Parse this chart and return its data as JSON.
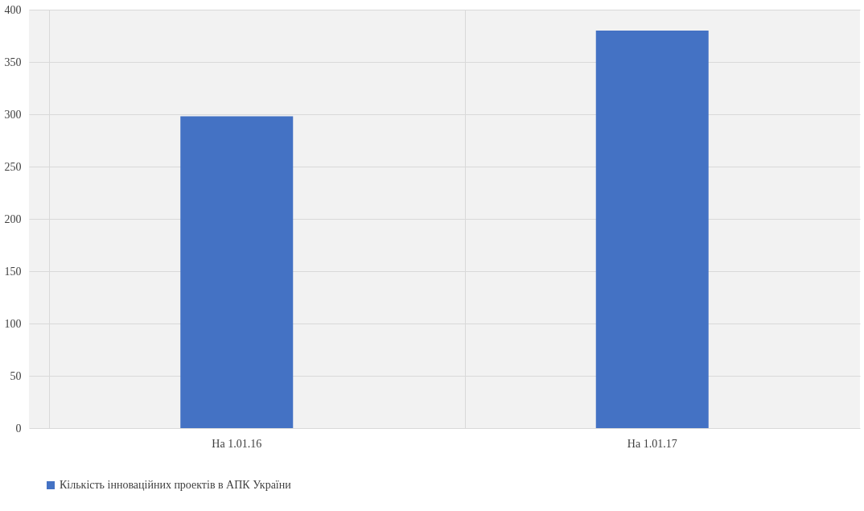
{
  "chart_data": {
    "type": "bar",
    "categories": [
      "На 1.01.16",
      "На 1.01.17"
    ],
    "series": [
      {
        "name": "Кількість інноваційних проектів в АПК України",
        "color": "#4472c4",
        "values": [
          298,
          380
        ]
      }
    ],
    "ylim": [
      0,
      400
    ],
    "yticks": [
      0,
      50,
      100,
      150,
      200,
      250,
      300,
      350,
      400
    ],
    "grid": true,
    "legend": "bottom"
  }
}
